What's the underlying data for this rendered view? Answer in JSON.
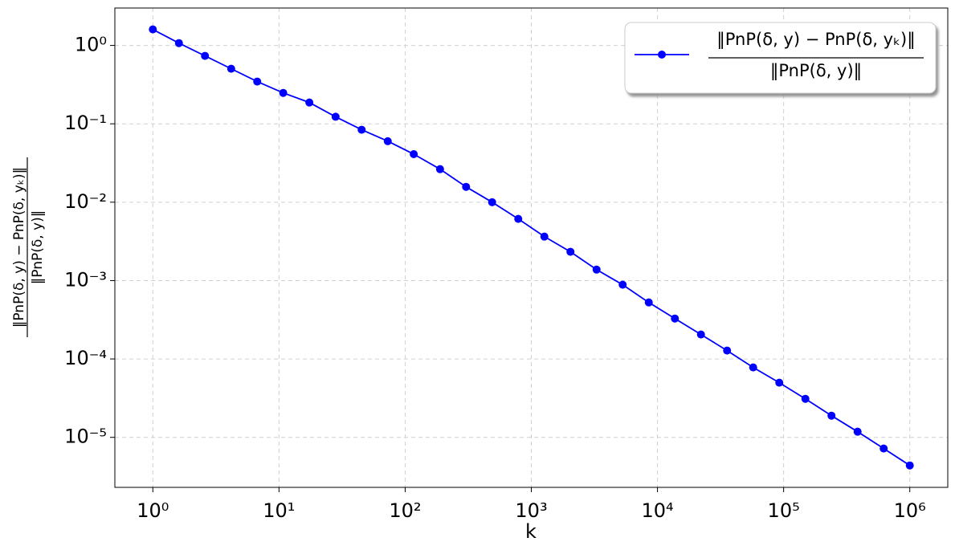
{
  "chart_data": {
    "type": "line",
    "xlabel": "k",
    "ylabel": {
      "numerator": "‖PnP(δ, y) − PnP(δ, yₖ)‖",
      "denominator": "‖PnP(δ, y)‖"
    },
    "x": [
      1,
      1.61,
      2.59,
      4.18,
      6.72,
      10.8,
      17.4,
      28.1,
      45.2,
      72.8,
      117,
      189,
      304,
      489,
      788,
      1269,
      2043,
      3290,
      5298,
      8532,
      13738,
      22122,
      35622,
      57362,
      92367,
      148735,
      239503,
      385662,
      621017,
      1000000
    ],
    "series": [
      {
        "name": {
          "numerator": "‖PnP(δ, y) − PnP(δ, yₖ)‖",
          "denominator": "‖PnP(δ, y)‖"
        },
        "color": "#0000ff",
        "values": [
          1.6,
          1.07,
          0.736,
          0.504,
          0.346,
          0.248,
          0.187,
          0.123,
          0.084,
          0.06,
          0.041,
          0.0264,
          0.0157,
          0.01,
          0.00612,
          0.00364,
          0.00233,
          0.00138,
          0.000885,
          0.000526,
          0.000328,
          0.000205,
          0.000128,
          7.8e-05,
          4.98e-05,
          3.1e-05,
          1.89e-05,
          1.18e-05,
          7.2e-06,
          4.38e-06
        ]
      }
    ],
    "xlog": true,
    "ylog": true,
    "xlim": [
      0.5,
      2000000
    ],
    "ylim": [
      2.3e-06,
      3
    ],
    "xticks": [
      {
        "value": 1,
        "label": "10⁰"
      },
      {
        "value": 10,
        "label": "10¹"
      },
      {
        "value": 100,
        "label": "10²"
      },
      {
        "value": 1000,
        "label": "10³"
      },
      {
        "value": 10000,
        "label": "10⁴"
      },
      {
        "value": 100000,
        "label": "10⁵"
      },
      {
        "value": 1000000,
        "label": "10⁶"
      }
    ],
    "yticks": [
      {
        "value": 1e-05,
        "label": "10⁻⁵"
      },
      {
        "value": 0.0001,
        "label": "10⁻⁴"
      },
      {
        "value": 0.001,
        "label": "10⁻³"
      },
      {
        "value": 0.01,
        "label": "10⁻²"
      },
      {
        "value": 0.1,
        "label": "10⁻¹"
      },
      {
        "value": 1,
        "label": "10⁰"
      }
    ],
    "grid": true,
    "legend": "upper right"
  }
}
